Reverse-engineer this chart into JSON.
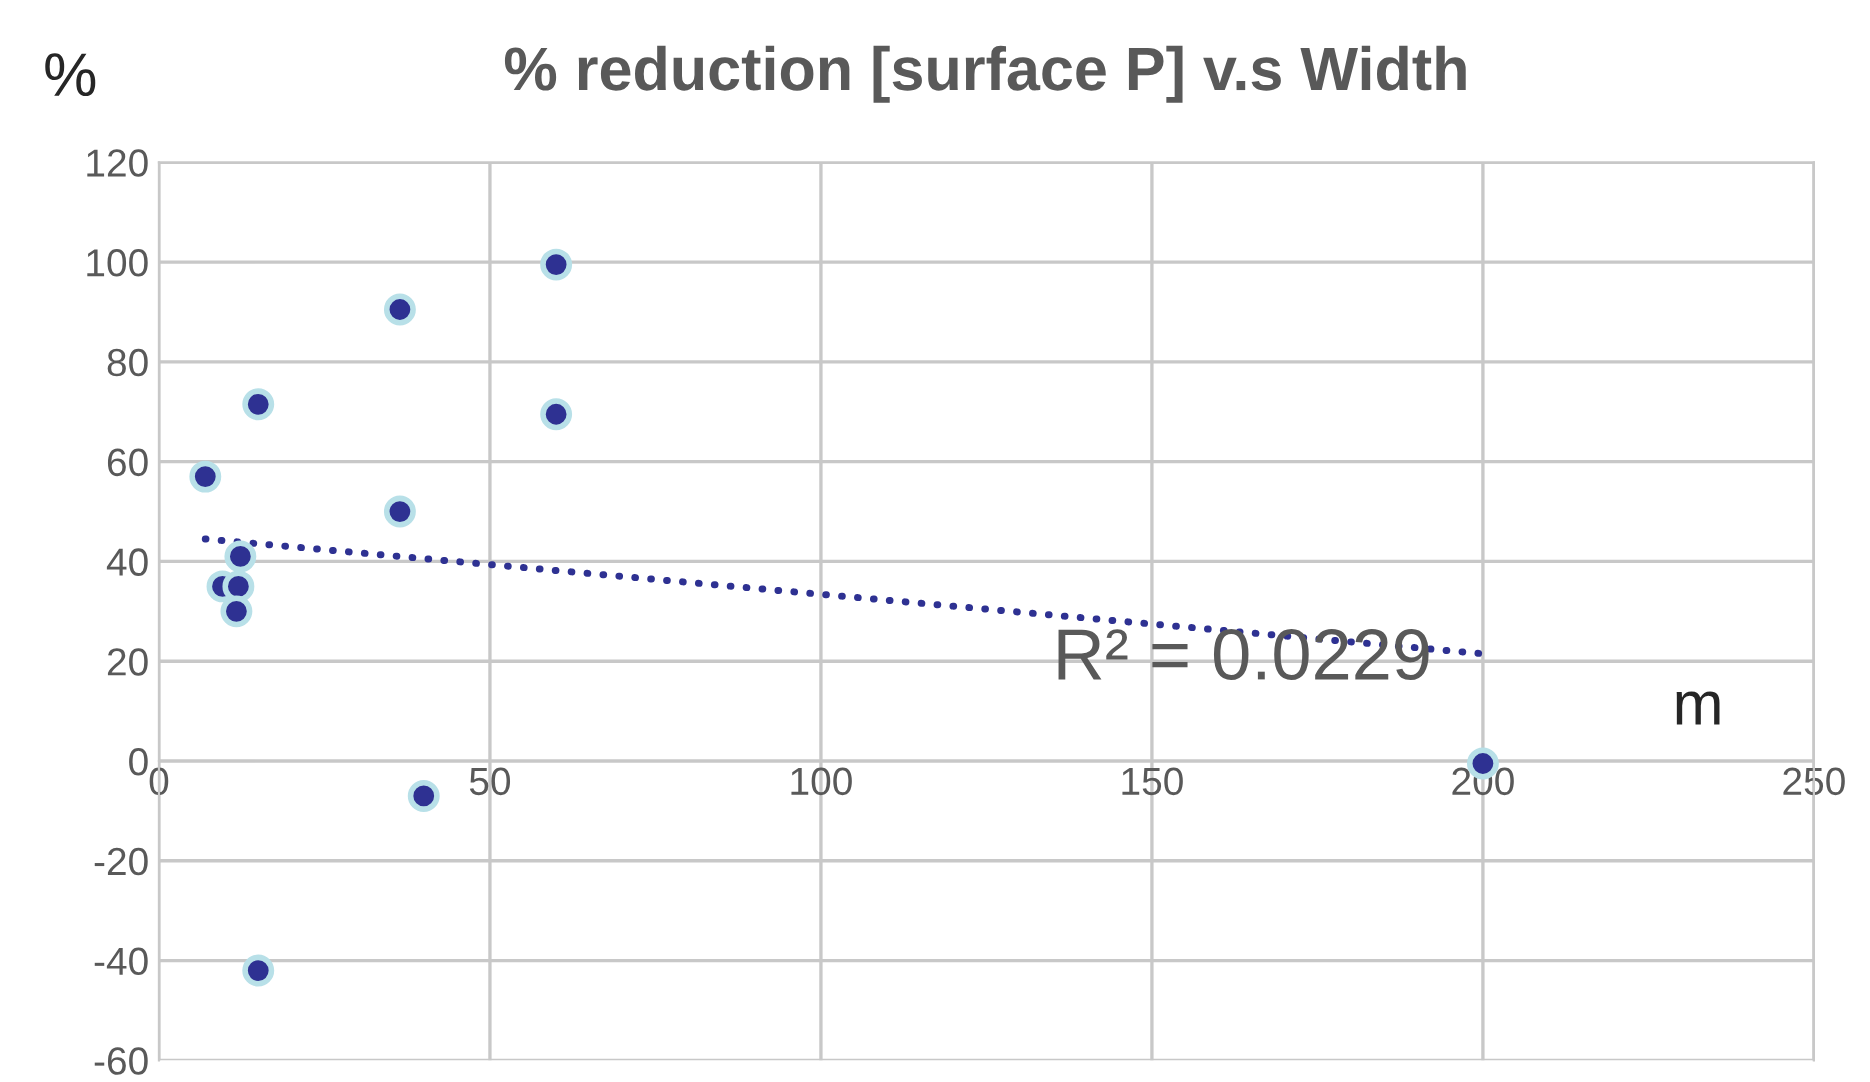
{
  "chart_data": {
    "type": "scatter",
    "title": "% reduction [surface P] v.s Width",
    "xlabel": "m",
    "ylabel": "%",
    "series": [
      {
        "color": "#2e3192",
        "x": [
          7,
          9.6,
          12,
          12.3,
          11.7,
          15,
          15,
          36.4,
          36.4,
          40,
          60,
          60,
          200
        ],
        "values": [
          57,
          35,
          35,
          41,
          30,
          71.5,
          -42,
          90.5,
          50,
          -7,
          99.5,
          69.5,
          -0.5
        ],
        "marker": "circle"
      },
      {
        "type": "line",
        "color": "#2e3192",
        "x": [
          7,
          200
        ],
        "values": [
          44.5,
          21.5
        ],
        "line_style": "dotted"
      }
    ],
    "annotations": [
      "R² = 0.0229"
    ],
    "xlim": [
      0,
      250
    ],
    "xticks": [
      0,
      50,
      100,
      150,
      200,
      250
    ],
    "ylim": [
      -60,
      120
    ],
    "yticks": [
      -60,
      -40,
      -20,
      0,
      20,
      40,
      60,
      80,
      100,
      120
    ],
    "grid": true,
    "legend": false
  }
}
